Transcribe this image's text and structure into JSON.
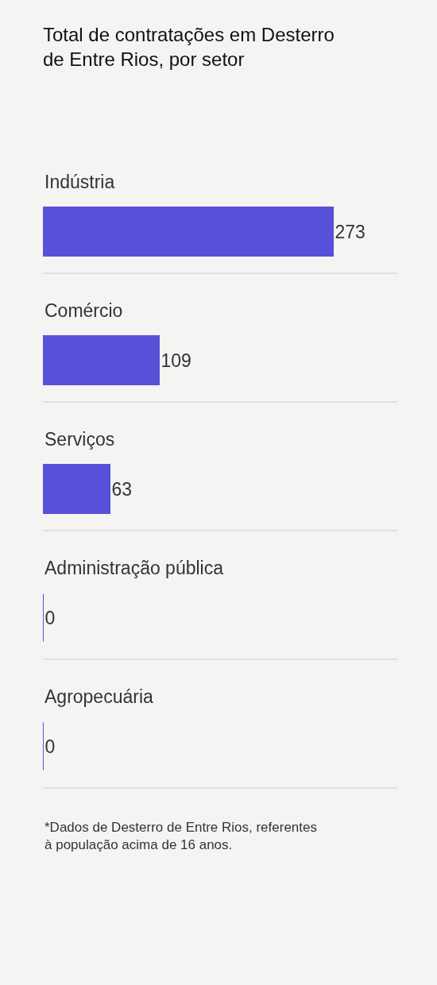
{
  "chart_data": {
    "type": "bar",
    "orientation": "horizontal",
    "title": "Total de contratações em Desterro de Entre Rios, por setor",
    "categories": [
      "Indústria",
      "Comércio",
      "Serviços",
      "Administração pública",
      "Agropecuária"
    ],
    "values": [
      273,
      109,
      63,
      0,
      0
    ],
    "color": "#5850d8",
    "data_labels": true,
    "grid": "y",
    "tick_labels": false,
    "legend": false,
    "annotations": [
      "*Dados de Desterro de Entre Rios, referentes à população acima de 16 anos."
    ]
  }
}
